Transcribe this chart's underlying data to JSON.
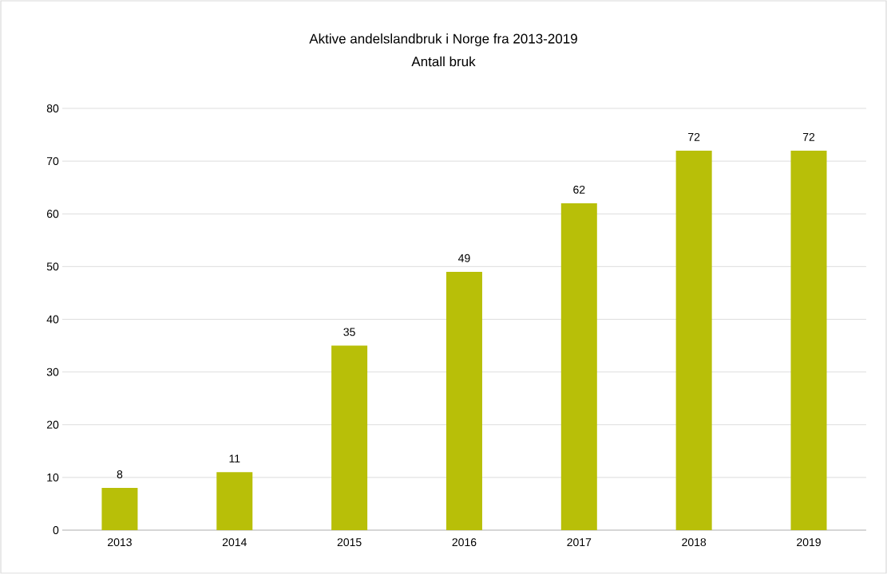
{
  "chart_data": {
    "type": "bar",
    "title": "Aktive andelslandbruk i Norge fra 2013-2019",
    "subtitle": "Antall bruk",
    "categories": [
      "2013",
      "2014",
      "2015",
      "2016",
      "2017",
      "2018",
      "2019"
    ],
    "values": [
      8,
      11,
      35,
      49,
      62,
      72,
      72
    ],
    "color": "#b8bf08",
    "ylim": [
      0,
      80
    ],
    "yticks": [
      0,
      10,
      20,
      30,
      40,
      50,
      60,
      70,
      80
    ],
    "grid": "y",
    "data_labels": true
  }
}
